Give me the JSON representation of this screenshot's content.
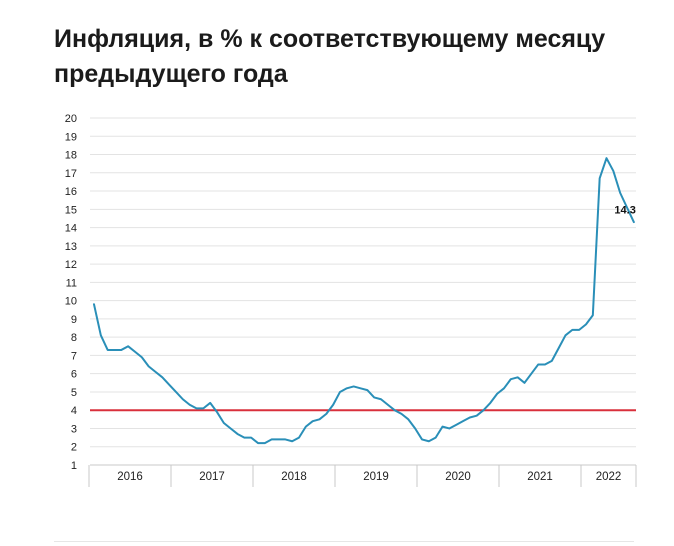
{
  "title": "Инфляция, в % к соответствующему месяцу предыдущего года",
  "chart_data": {
    "type": "line",
    "title": "Инфляция, в % к соответствующему месяцу предыдущего года",
    "xlabel": "",
    "ylabel": "",
    "ylim": [
      1,
      20
    ],
    "yticks": [
      1,
      2,
      3,
      4,
      5,
      6,
      7,
      8,
      9,
      10,
      11,
      12,
      13,
      14,
      15,
      16,
      17,
      18,
      19,
      20
    ],
    "grid": true,
    "x_categories": [
      "2016",
      "2017",
      "2018",
      "2019",
      "2020",
      "2021",
      "2022"
    ],
    "series": [
      {
        "color": "#2a8fb8",
        "x": [
          "2016-01",
          "2016-02",
          "2016-03",
          "2016-04",
          "2016-05",
          "2016-06",
          "2016-07",
          "2016-08",
          "2016-09",
          "2016-10",
          "2016-11",
          "2016-12",
          "2017-01",
          "2017-02",
          "2017-03",
          "2017-04",
          "2017-05",
          "2017-06",
          "2017-07",
          "2017-08",
          "2017-09",
          "2017-10",
          "2017-11",
          "2017-12",
          "2018-01",
          "2018-02",
          "2018-03",
          "2018-04",
          "2018-05",
          "2018-06",
          "2018-07",
          "2018-08",
          "2018-09",
          "2018-10",
          "2018-11",
          "2018-12",
          "2019-01",
          "2019-02",
          "2019-03",
          "2019-04",
          "2019-05",
          "2019-06",
          "2019-07",
          "2019-08",
          "2019-09",
          "2019-10",
          "2019-11",
          "2019-12",
          "2020-01",
          "2020-02",
          "2020-03",
          "2020-04",
          "2020-05",
          "2020-06",
          "2020-07",
          "2020-08",
          "2020-09",
          "2020-10",
          "2020-11",
          "2020-12",
          "2021-01",
          "2021-02",
          "2021-03",
          "2021-04",
          "2021-05",
          "2021-06",
          "2021-07",
          "2021-08",
          "2021-09",
          "2021-10",
          "2021-11",
          "2021-12",
          "2022-01",
          "2022-02",
          "2022-03",
          "2022-04",
          "2022-05",
          "2022-06",
          "2022-07",
          "2022-08"
        ],
        "values": [
          9.8,
          8.1,
          7.3,
          7.3,
          7.3,
          7.5,
          7.2,
          6.9,
          6.4,
          6.1,
          5.8,
          5.4,
          5.0,
          4.6,
          4.3,
          4.1,
          4.1,
          4.4,
          3.9,
          3.3,
          3.0,
          2.7,
          2.5,
          2.5,
          2.2,
          2.2,
          2.4,
          2.4,
          2.4,
          2.3,
          2.5,
          3.1,
          3.4,
          3.5,
          3.8,
          4.3,
          5.0,
          5.2,
          5.3,
          5.2,
          5.1,
          4.7,
          4.6,
          4.3,
          4.0,
          3.8,
          3.5,
          3.0,
          2.4,
          2.3,
          2.5,
          3.1,
          3.0,
          3.2,
          3.4,
          3.6,
          3.7,
          4.0,
          4.4,
          4.9,
          5.2,
          5.7,
          5.8,
          5.5,
          6.0,
          6.5,
          6.5,
          6.7,
          7.4,
          8.1,
          8.4,
          8.4,
          8.7,
          9.2,
          16.7,
          17.8,
          17.1,
          15.9,
          15.1,
          14.3
        ]
      }
    ],
    "reference_line": {
      "value": 4,
      "color": "#d9303c"
    },
    "end_label": "14.3"
  }
}
